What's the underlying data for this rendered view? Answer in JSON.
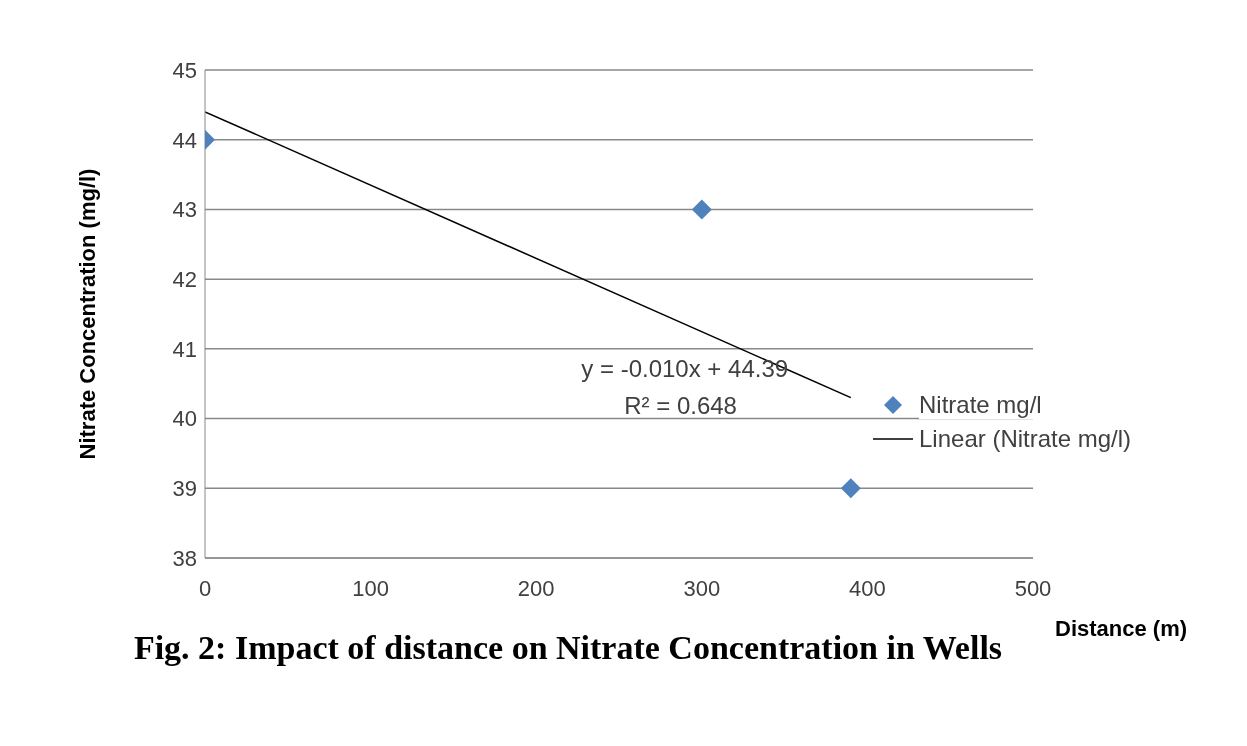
{
  "chart_data": {
    "type": "scatter",
    "title": "Fig. 2: Impact of distance on Nitrate Concentration in Wells",
    "xlabel": "Distance (m)",
    "ylabel": "Nitrate Concentration (mg/l)",
    "series": [
      {
        "name": "Nitrate mg/l",
        "color": "#4f81bd",
        "x": [
          0,
          300,
          390
        ],
        "values": [
          44,
          43,
          39
        ],
        "marker": "diamond"
      },
      {
        "name": "Linear (Nitrate mg/l)",
        "type": "line",
        "color": "#000000",
        "x": [
          0,
          390
        ],
        "values": [
          44.4,
          40.3
        ],
        "marker": "none"
      }
    ],
    "annotations": [
      "y = -0.010x + 44.39",
      "R² = 0.648"
    ],
    "xlim": [
      0,
      500
    ],
    "xticks": [
      0,
      100,
      200,
      300,
      400,
      500
    ],
    "ylim": [
      38,
      45
    ],
    "yticks": [
      38,
      39,
      40,
      41,
      42,
      43,
      44,
      45
    ],
    "grid": "y",
    "legend": "right"
  }
}
